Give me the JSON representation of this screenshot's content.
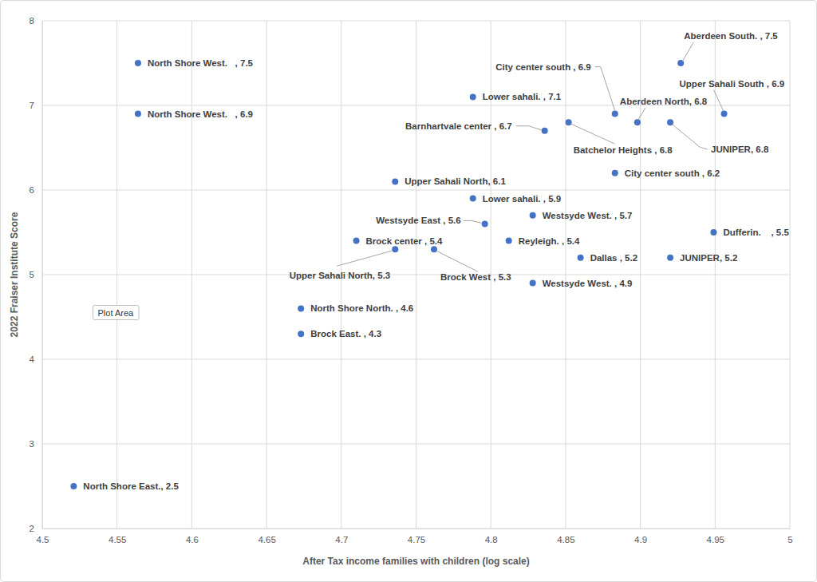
{
  "chart_data": {
    "type": "scatter",
    "x_label": "After Tax income families with children (log scale)",
    "y_label": "2022 Fraiser Institute Score",
    "x": [
      4.564,
      4.564,
      4.521,
      4.788,
      4.927,
      4.883,
      4.956,
      4.898,
      4.836,
      4.852,
      4.92,
      4.883,
      4.736,
      4.788,
      4.796,
      4.828,
      4.71,
      4.812,
      4.736,
      4.762,
      4.86,
      4.92,
      4.949,
      4.828,
      4.673,
      4.673
    ],
    "values": [
      7.5,
      6.9,
      2.5,
      7.1,
      7.5,
      6.9,
      6.9,
      6.8,
      6.7,
      6.8,
      6.8,
      6.2,
      6.1,
      5.9,
      5.6,
      5.7,
      5.4,
      5.4,
      5.3,
      5.3,
      5.2,
      5.2,
      5.5,
      4.9,
      4.6,
      4.3
    ],
    "value_labels": [
      "North Shore West.   , 7.5",
      "North Shore West.   , 6.9",
      "North Shore East., 2.5",
      "Lower sahali. , 7.1",
      "Aberdeen South. , 7.5",
      "City center south , 6.9",
      "Upper Sahali South , 6.9",
      "Aberdeen North, 6.8",
      "Barnhartvale center , 6.7",
      "Batchelor Heights , 6.8",
      "JUNIPER, 6.8",
      "City center south , 6.2",
      "Upper Sahali North, 6.1",
      "Lower sahali. , 5.9",
      "Westsyde East , 5.6",
      "Westsyde West. , 5.7",
      "Brock center , 5.4",
      "Reyleigh. , 5.4",
      "Upper Sahali North, 5.3",
      "Brock West , 5.3",
      "Dallas , 5.2",
      "JUNIPER, 5.2",
      "Dufferin.    , 5.5",
      "Westsyde West. , 4.9",
      "North Shore North. , 4.6",
      "Brock East. , 4.3"
    ],
    "data_labels": true,
    "color": "#4472c4",
    "marker": "circle",
    "xlim": [
      4.5,
      5
    ],
    "xticks": [
      4.5,
      4.55,
      4.6,
      4.65,
      4.7,
      4.75,
      4.8,
      4.85,
      4.9,
      4.95,
      5
    ],
    "ylim": [
      2,
      8
    ],
    "yticks": [
      2,
      3,
      4,
      5,
      6,
      7,
      8
    ],
    "grid": true,
    "annotations": [
      {
        "text": "Plot Area",
        "x": 4.549,
        "y": 4.55
      }
    ]
  }
}
